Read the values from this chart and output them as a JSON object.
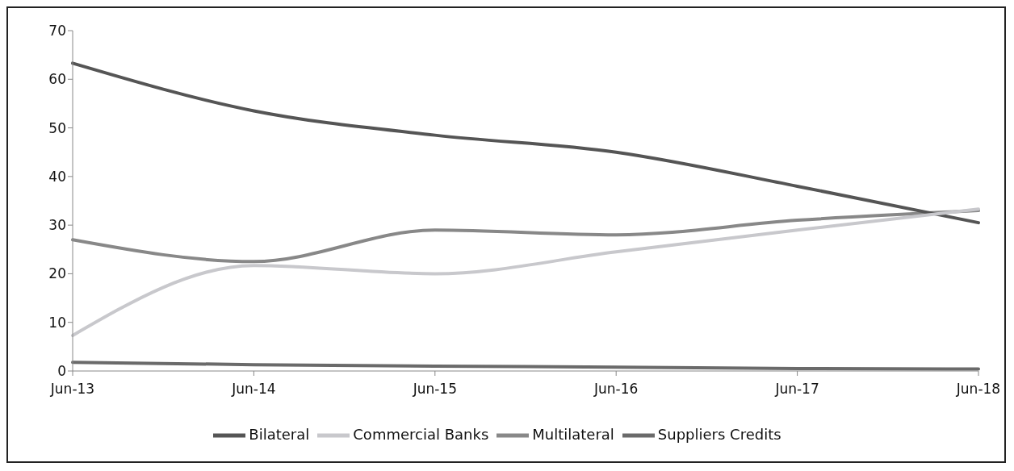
{
  "chart_data": {
    "type": "line",
    "categories": [
      "Jun-13",
      "Jun-14",
      "Jun-15",
      "Jun-16",
      "Jun-17",
      "Jun-18"
    ],
    "series": [
      {
        "name": "Multilateral",
        "color": "#888888",
        "values": [
          27,
          22.5,
          29,
          28,
          31,
          33
        ]
      },
      {
        "name": "Bilateral",
        "color": "#555555",
        "values": [
          63.3,
          53.5,
          48.5,
          45,
          38,
          30.5
        ]
      },
      {
        "name": "Commercial Banks",
        "color": "#c8c8cc",
        "values": [
          7.3,
          21.7,
          20,
          24.5,
          29,
          33.3
        ]
      },
      {
        "name": "Suppliers Credits",
        "color": "#6a6a6a",
        "values": [
          1.8,
          1.3,
          1,
          0.8,
          0.5,
          0.4
        ]
      }
    ],
    "ylim": [
      0,
      70
    ],
    "yticks": [
      0,
      10,
      20,
      30,
      40,
      50,
      60,
      70
    ],
    "grid": false,
    "legend": "bottom",
    "marker": "none",
    "line_style": "solid"
  }
}
